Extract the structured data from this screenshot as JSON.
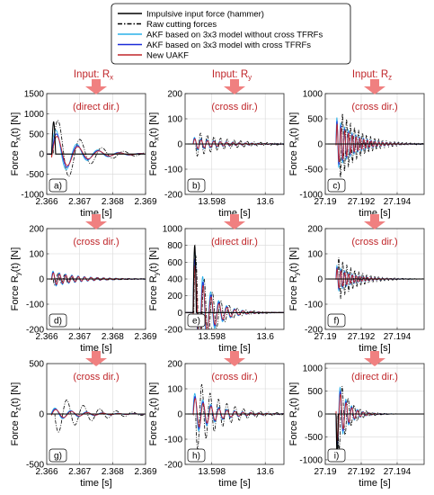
{
  "legend": {
    "placement": "top-center",
    "entries": [
      {
        "label": "Impulsive input force (hammer)",
        "color": "#000000",
        "style": "solid"
      },
      {
        "label": "Raw cutting forces",
        "color": "#000000",
        "style": "dashdot"
      },
      {
        "label": "AKF based on 3x3 model without cross TFRFs",
        "color": "#2ab0e8",
        "style": "solid"
      },
      {
        "label": "AKF based on 3x3 model with cross TFRFs",
        "color": "#1a2ad8",
        "style": "solid"
      },
      {
        "label": "New UAKF",
        "color": "#c0262a",
        "style": "solid"
      }
    ]
  },
  "inputs": [
    {
      "prefix": "Input: R",
      "sub": "x"
    },
    {
      "prefix": "Input: R",
      "sub": "y"
    },
    {
      "prefix": "Input: R",
      "sub": "z"
    }
  ],
  "colors": {
    "arrow": "#f08080",
    "annotation": "#c0262a",
    "hammer": "#000000",
    "raw": "#000000",
    "akf_no_cross": "#2ab0e8",
    "akf_cross": "#1a2ad8",
    "uakf": "#c0262a"
  },
  "chart_data": [
    {
      "type": "line",
      "panel_label": "a)",
      "direction_note": "(direct dir.)",
      "xlabel": "time [s]",
      "ylabel_prefix": "Force R",
      "ylabel_sub": "x",
      "ylabel_suffix": "(t) [N]",
      "xlim": [
        2.366,
        2.369
      ],
      "xticks": [
        "2.366",
        "2.367",
        "2.368",
        "2.369"
      ],
      "xtick_values": [
        2.366,
        2.367,
        2.368,
        2.369
      ],
      "ylim": [
        -1000,
        1500
      ],
      "yticks": [
        "-1000",
        "-500",
        "0",
        "500",
        "1000",
        "1500"
      ],
      "ytick_values": [
        -1000,
        -500,
        0,
        500,
        1000,
        1500
      ],
      "grid": true,
      "impulse_start": 2.36615,
      "impulse_peak": 800,
      "impulse_width": 0.00012,
      "raw_amp": 1000,
      "raw_decay": 0.0008,
      "raw_freq": 1500,
      "raw_delay": 5e-05,
      "akf_amp": 650
    },
    {
      "type": "line",
      "panel_label": "b)",
      "direction_note": "(cross dir.)",
      "xlabel": "time [s]",
      "ylabel_prefix": "Force R",
      "ylabel_sub": "x",
      "ylabel_suffix": "(t) [N]",
      "xlim": [
        13.597,
        13.6007
      ],
      "xticks": [
        "13.598",
        "13.6"
      ],
      "xtick_values": [
        13.598,
        13.6
      ],
      "ylim": [
        -200,
        200
      ],
      "yticks": [
        "-200",
        "-100",
        "0",
        "100",
        "200"
      ],
      "ytick_values": [
        -200,
        -100,
        0,
        100,
        200
      ],
      "grid": true,
      "impulse_start": 13.5973,
      "impulse_peak": 0,
      "impulse_width": 0.00012,
      "raw_amp": -50,
      "raw_decay": 0.0012,
      "raw_freq": 4000,
      "raw_delay": 0.0001,
      "akf_amp": 25
    },
    {
      "type": "line",
      "panel_label": "c)",
      "direction_note": "(cross dir.)",
      "xlabel": "time [s]",
      "ylabel_prefix": "Force R",
      "ylabel_sub": "x",
      "ylabel_suffix": "(t) [N]",
      "xlim": [
        27.19,
        27.1955
      ],
      "xticks": [
        "27.19",
        "27.192",
        "27.194"
      ],
      "xtick_values": [
        27.19,
        27.192,
        27.194
      ],
      "ylim": [
        -1000,
        1000
      ],
      "yticks": [
        "-1000",
        "-500",
        "0",
        "500",
        "1000"
      ],
      "ytick_values": [
        -1000,
        -500,
        0,
        500,
        1000
      ],
      "grid": true,
      "impulse_start": 27.1906,
      "impulse_peak": 0,
      "impulse_width": 0.00012,
      "raw_amp": -700,
      "raw_decay": 0.0011,
      "raw_freq": 4500,
      "raw_delay": 0.0002,
      "akf_amp": 500
    },
    {
      "type": "line",
      "panel_label": "d)",
      "direction_note": "(cross dir.)",
      "xlabel": "time [s]",
      "ylabel_prefix": "Force R",
      "ylabel_sub": "y",
      "ylabel_suffix": "(t) [N]",
      "xlim": [
        2.366,
        2.369
      ],
      "xticks": [
        "2.366",
        "2.367",
        "2.368",
        "2.369"
      ],
      "xtick_values": [
        2.366,
        2.367,
        2.368,
        2.369
      ],
      "ylim": [
        -200,
        200
      ],
      "yticks": [
        "-200",
        "-100",
        "0",
        "100",
        "200"
      ],
      "ytick_values": [
        -200,
        -100,
        0,
        100,
        200
      ],
      "grid": true,
      "impulse_start": 2.36615,
      "impulse_peak": 0,
      "impulse_width": 0.00012,
      "raw_amp": -25,
      "raw_decay": 0.0009,
      "raw_freq": 5000,
      "raw_delay": 5e-05,
      "akf_amp": 30
    },
    {
      "type": "line",
      "panel_label": "e)",
      "direction_note": "(direct dir.)",
      "xlabel": "time [s]",
      "ylabel_prefix": "Force R",
      "ylabel_sub": "y",
      "ylabel_suffix": "(t) [N]",
      "xlim": [
        13.597,
        13.6007
      ],
      "xticks": [
        "13.598",
        "13.6"
      ],
      "xtick_values": [
        13.598,
        13.6
      ],
      "ylim": [
        -200,
        1000
      ],
      "yticks": [
        "-200",
        "0",
        "200",
        "400",
        "600",
        "800",
        "1000"
      ],
      "ytick_values": [
        -200,
        0,
        200,
        400,
        600,
        800,
        1000
      ],
      "grid": true,
      "impulse_start": 13.5973,
      "impulse_peak": 800,
      "impulse_width": 0.00012,
      "raw_amp": 760,
      "raw_decay": 0.0006,
      "raw_freq": 3200,
      "raw_delay": 3e-05,
      "akf_amp": 760
    },
    {
      "type": "line",
      "panel_label": "f)",
      "direction_note": "(cross dir.)",
      "xlabel": "time [s]",
      "ylabel_prefix": "Force R",
      "ylabel_sub": "y",
      "ylabel_suffix": "(t) [N]",
      "xlim": [
        27.19,
        27.1955
      ],
      "xticks": [
        "27.19",
        "27.192",
        "27.194"
      ],
      "xtick_values": [
        27.19,
        27.192,
        27.194
      ],
      "ylim": [
        -200,
        200
      ],
      "yticks": [
        "-200",
        "-100",
        "0",
        "100",
        "200"
      ],
      "ytick_values": [
        -200,
        -100,
        0,
        100,
        200
      ],
      "grid": true,
      "impulse_start": 27.1906,
      "impulse_peak": 0,
      "impulse_width": 0.00012,
      "raw_amp": 90,
      "raw_decay": 0.001,
      "raw_freq": 4500,
      "raw_delay": 0.0001,
      "akf_amp": 50
    },
    {
      "type": "line",
      "panel_label": "g)",
      "direction_note": "(cross dir.)",
      "xlabel": "time [s]",
      "ylabel_prefix": "Force R",
      "ylabel_sub": "z",
      "ylabel_suffix": "(t) [N]",
      "xlim": [
        2.366,
        2.369
      ],
      "xticks": [
        "2.366",
        "2.367",
        "2.368",
        "2.369"
      ],
      "xtick_values": [
        2.366,
        2.367,
        2.368,
        2.369
      ],
      "ylim": [
        -500,
        500
      ],
      "yticks": [
        "-500",
        "0",
        "500"
      ],
      "ytick_values": [
        -500,
        0,
        500
      ],
      "grid": true,
      "impulse_start": 2.36615,
      "impulse_peak": 0,
      "impulse_width": 0.00012,
      "raw_amp": -200,
      "raw_decay": 0.001,
      "raw_freq": 2000,
      "raw_delay": 0.0001,
      "akf_amp": 60
    },
    {
      "type": "line",
      "panel_label": "h)",
      "direction_note": "(cross dir.)",
      "xlabel": "time [s]",
      "ylabel_prefix": "Force R",
      "ylabel_sub": "z",
      "ylabel_suffix": "(t) [N]",
      "xlim": [
        13.597,
        13.6007
      ],
      "xticks": [
        "13.598",
        "13.6"
      ],
      "xtick_values": [
        13.598,
        13.6
      ],
      "ylim": [
        -200,
        200
      ],
      "yticks": [
        "-200",
        "-100",
        "0",
        "100",
        "200"
      ],
      "ytick_values": [
        -200,
        -100,
        0,
        100,
        200
      ],
      "grid": true,
      "impulse_start": 13.5973,
      "impulse_peak": 0,
      "impulse_width": 0.00012,
      "raw_amp": -150,
      "raw_decay": 0.0009,
      "raw_freq": 3200,
      "raw_delay": 0.0001,
      "akf_amp": 80
    },
    {
      "type": "line",
      "panel_label": "i)",
      "direction_note": "(direct dir.)",
      "xlabel": "time [s]",
      "ylabel_prefix": "Force R",
      "ylabel_sub": "z",
      "ylabel_suffix": "(t) [N]",
      "xlim": [
        27.19,
        27.1955
      ],
      "xticks": [
        "27.19",
        "27.192",
        "27.194"
      ],
      "xtick_values": [
        27.19,
        27.192,
        27.194
      ],
      "ylim": [
        -1100,
        1100
      ],
      "yticks": [
        "-1000",
        "-500",
        "0",
        "500",
        "1000"
      ],
      "ytick_values": [
        -1000,
        -500,
        0,
        500,
        1000
      ],
      "grid": true,
      "impulse_start": 27.1906,
      "impulse_peak": -950,
      "impulse_width": 0.00012,
      "raw_amp": -900,
      "raw_decay": 0.0006,
      "raw_freq": 3000,
      "raw_delay": 0.0001,
      "akf_amp": -800
    }
  ]
}
